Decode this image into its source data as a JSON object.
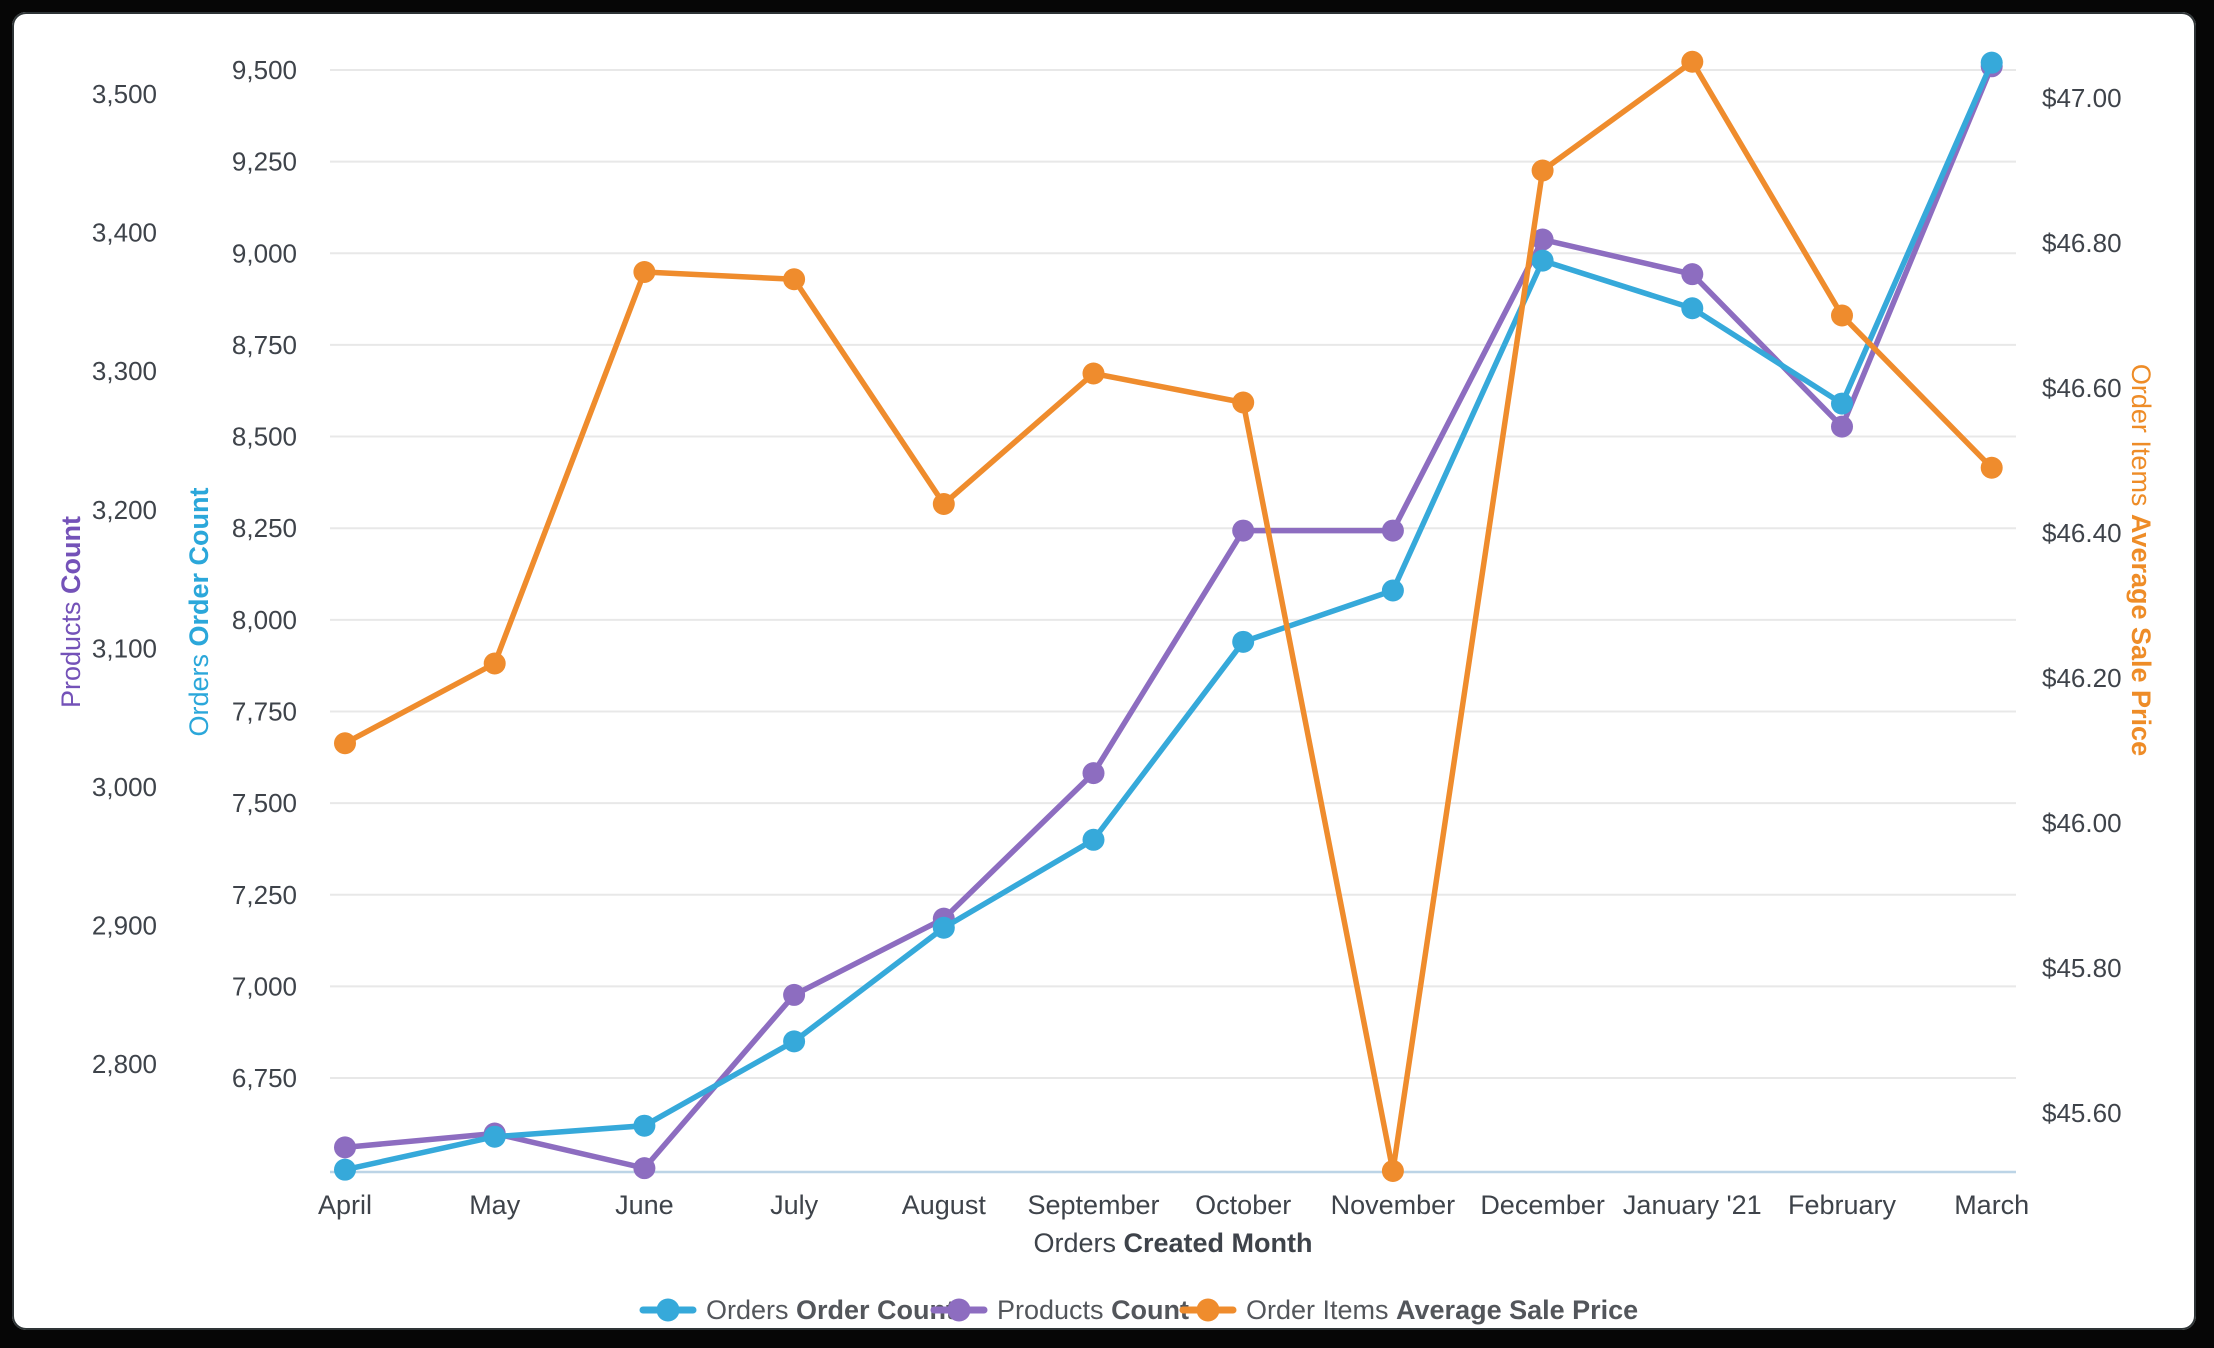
{
  "frame": {
    "background_color": "#060606",
    "card_background": "#ffffff"
  },
  "chart_data": {
    "type": "line",
    "categories": [
      "April",
      "May",
      "June",
      "July",
      "August",
      "September",
      "October",
      "November",
      "December",
      "January '21",
      "February",
      "March"
    ],
    "x_axis": {
      "title_prefix": "Orders",
      "title_bold": "Created Month",
      "title_color": "#3e434a"
    },
    "axes": {
      "outer_left": {
        "title_prefix": "Products",
        "title_bold": "Count",
        "title_color": "#7452b8",
        "tick_labels": [
          "3,500",
          "3,400",
          "3,300",
          "3,200",
          "3,100",
          "3,000",
          "2,900",
          "2,800"
        ],
        "tick_values": [
          3500,
          3400,
          3300,
          3200,
          3100,
          3000,
          2900,
          2800
        ]
      },
      "inner_left": {
        "title_prefix": "Orders",
        "title_bold": "Order Count",
        "title_color": "#2ba7da",
        "tick_labels": [
          "9,500",
          "9,250",
          "9,000",
          "8,750",
          "8,500",
          "8,250",
          "8,000",
          "7,750",
          "7,500",
          "7,250",
          "7,000",
          "6,750"
        ],
        "tick_values": [
          9500,
          9250,
          9000,
          8750,
          8500,
          8250,
          8000,
          7750,
          7500,
          7250,
          7000,
          6750
        ],
        "gridlines": true
      },
      "right": {
        "title_prefix": "Order Items",
        "title_bold": "Average Sale Price",
        "title_color": "#ee8c27",
        "tick_labels": [
          "$47.00",
          "$46.80",
          "$46.60",
          "$46.40",
          "$46.20",
          "$46.00",
          "$45.80",
          "$45.60"
        ],
        "tick_values": [
          47.0,
          46.8,
          46.6,
          46.4,
          46.2,
          46.0,
          45.8,
          45.6
        ]
      }
    },
    "series": [
      {
        "id": "orders-order-count",
        "name_prefix": "Orders",
        "name_bold": "Order Count",
        "axis": "inner_left",
        "color": "#36a9da",
        "values": [
          6500,
          6590,
          6620,
          6850,
          7160,
          7400,
          7940,
          8080,
          8980,
          8850,
          8590,
          9520
        ]
      },
      {
        "id": "products-count",
        "name_prefix": "Products",
        "name_bold": "Count",
        "axis": "outer_left",
        "color": "#8d6dc0",
        "values": [
          2740,
          2750,
          2725,
          2850,
          2905,
          3010,
          3185,
          3185,
          3395,
          3370,
          3260,
          3520
        ]
      },
      {
        "id": "order-items-average-sale-price",
        "name_prefix": "Order Items",
        "name_bold": "Average Sale Price",
        "axis": "right",
        "color": "#ef8c2d",
        "values": [
          46.11,
          46.22,
          46.76,
          46.75,
          46.44,
          46.62,
          46.58,
          45.52,
          46.9,
          47.05,
          46.7,
          46.49
        ]
      }
    ],
    "legend": {
      "position": "bottom",
      "items": [
        "Orders Order Count",
        "Products Count",
        "Order Items Average Sale Price"
      ]
    },
    "grid": true,
    "styles": {
      "grid_color": "#e8e8e8",
      "baseline_color": "#bcd4e6",
      "tick_text_color": "#3e434a",
      "legend_text_color": "#53565b"
    }
  }
}
